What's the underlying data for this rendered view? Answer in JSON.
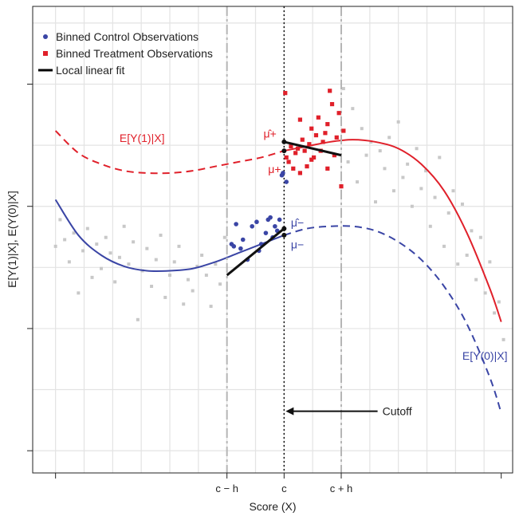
{
  "chart_data": {
    "type": "scatter",
    "title": "",
    "xlabel": "Score (X)",
    "ylabel": "E[Y(1)|X], E(Y(0)|X]",
    "xlim": [
      -1.1,
      1.0
    ],
    "ylim": [
      -1.15,
      0.95
    ],
    "grid": true,
    "x_ticks": [
      {
        "value": -1.0,
        "label": ""
      },
      {
        "value": -0.25,
        "label": "c − h"
      },
      {
        "value": 0.0,
        "label": "c"
      },
      {
        "value": 0.25,
        "label": "c + h"
      },
      {
        "value": 0.95,
        "label": ""
      }
    ],
    "y_ticks": [
      -1.05,
      -0.5,
      0.05,
      0.6
    ],
    "cutoff": 0.0,
    "bandwidth": 0.25,
    "legend": {
      "position": "top-left",
      "entries": [
        {
          "label": "Binned Control Observations",
          "color": "#3a45a5",
          "marker": "circle"
        },
        {
          "label": "Binned Treatment Observations",
          "color": "#e0202a",
          "marker": "square"
        },
        {
          "label": "Local linear fit",
          "color": "#000000",
          "marker": "line"
        }
      ]
    },
    "series": [
      {
        "name": "E[Y(1)|X]",
        "color": "#e0202a",
        "x": [
          -1.0,
          -0.9,
          -0.8,
          -0.7,
          -0.6,
          -0.5,
          -0.4,
          -0.3,
          -0.2,
          -0.1,
          0.0,
          0.1,
          0.2,
          0.3,
          0.4,
          0.5,
          0.6,
          0.7,
          0.8,
          0.9,
          0.95
        ],
        "y": [
          0.39,
          0.29,
          0.24,
          0.21,
          0.2,
          0.2,
          0.21,
          0.23,
          0.25,
          0.27,
          0.3,
          0.32,
          0.34,
          0.35,
          0.34,
          0.31,
          0.24,
          0.12,
          -0.07,
          -0.32,
          -0.47
        ],
        "dashed_range": [
          -1.0,
          0.0
        ],
        "solid_range": [
          0.0,
          0.95
        ]
      },
      {
        "name": "E[Y(0)|X]",
        "color": "#3a45a5",
        "x": [
          -1.0,
          -0.9,
          -0.8,
          -0.7,
          -0.6,
          -0.5,
          -0.4,
          -0.3,
          -0.2,
          -0.1,
          0.0,
          0.1,
          0.2,
          0.3,
          0.4,
          0.5,
          0.6,
          0.7,
          0.8,
          0.9,
          0.95
        ],
        "y": [
          0.08,
          -0.08,
          -0.17,
          -0.22,
          -0.24,
          -0.24,
          -0.23,
          -0.2,
          -0.16,
          -0.12,
          -0.08,
          -0.05,
          -0.04,
          -0.04,
          -0.06,
          -0.11,
          -0.19,
          -0.31,
          -0.48,
          -0.72,
          -0.88
        ],
        "dashed_range": [
          0.0,
          0.95
        ],
        "solid_range": [
          -1.0,
          0.0
        ]
      }
    ],
    "local_linear_fit": [
      {
        "name": "control",
        "x": [
          -0.25,
          0.0
        ],
        "y": [
          -0.26,
          -0.05
        ]
      },
      {
        "name": "treatment",
        "x": [
          0.0,
          0.25
        ],
        "y": [
          0.34,
          0.28
        ]
      }
    ],
    "control_points": {
      "color": "#3a45a5",
      "x": [
        -0.23,
        -0.22,
        -0.21,
        -0.19,
        -0.18,
        -0.16,
        -0.14,
        -0.12,
        -0.11,
        -0.1,
        -0.08,
        -0.07,
        -0.06,
        -0.05,
        -0.04,
        -0.03,
        -0.02,
        -0.01,
        -0.005,
        0.01
      ],
      "y": [
        -0.12,
        -0.13,
        -0.03,
        -0.14,
        -0.1,
        -0.19,
        -0.04,
        -0.02,
        -0.15,
        -0.12,
        -0.07,
        -0.01,
        0.0,
        -0.09,
        -0.04,
        -0.06,
        -0.01,
        0.19,
        0.2,
        0.16
      ]
    },
    "treatment_points": {
      "color": "#e0202a",
      "x": [
        0.005,
        0.01,
        0.02,
        0.03,
        0.04,
        0.05,
        0.06,
        0.07,
        0.08,
        0.09,
        0.1,
        0.11,
        0.12,
        0.13,
        0.14,
        0.15,
        0.16,
        0.17,
        0.18,
        0.19,
        0.2,
        0.21,
        0.22,
        0.23,
        0.24,
        0.25,
        0.26,
        0.07,
        0.12,
        0.19
      ],
      "y": [
        0.56,
        0.27,
        0.25,
        0.32,
        0.22,
        0.29,
        0.31,
        0.44,
        0.35,
        0.3,
        0.23,
        0.33,
        0.4,
        0.27,
        0.37,
        0.45,
        0.3,
        0.34,
        0.38,
        0.42,
        0.57,
        0.51,
        0.28,
        0.36,
        0.47,
        0.14,
        0.39,
        0.2,
        0.26,
        0.22
      ]
    },
    "background_points": {
      "color": "#c8c8c8",
      "x": [
        -1.0,
        -0.98,
        -0.96,
        -0.94,
        -0.92,
        -0.9,
        -0.88,
        -0.86,
        -0.84,
        -0.82,
        -0.8,
        -0.78,
        -0.76,
        -0.74,
        -0.72,
        -0.7,
        -0.68,
        -0.66,
        -0.64,
        -0.62,
        -0.6,
        -0.58,
        -0.56,
        -0.54,
        -0.52,
        -0.5,
        -0.48,
        -0.46,
        -0.44,
        -0.42,
        -0.4,
        -0.38,
        -0.36,
        -0.34,
        -0.32,
        -0.3,
        -0.28,
        -0.26,
        0.26,
        0.28,
        0.3,
        0.32,
        0.34,
        0.36,
        0.38,
        0.4,
        0.42,
        0.44,
        0.46,
        0.48,
        0.5,
        0.52,
        0.54,
        0.56,
        0.58,
        0.6,
        0.62,
        0.64,
        0.66,
        0.68,
        0.7,
        0.72,
        0.74,
        0.76,
        0.78,
        0.8,
        0.82,
        0.84,
        0.86,
        0.88,
        0.9,
        0.92,
        0.94,
        0.96
      ],
      "y": [
        -0.13,
        -0.01,
        -0.1,
        -0.2,
        -0.07,
        -0.34,
        -0.15,
        -0.05,
        -0.27,
        -0.12,
        -0.23,
        -0.09,
        -0.16,
        -0.29,
        -0.18,
        -0.04,
        -0.21,
        -0.11,
        -0.46,
        -0.24,
        -0.14,
        -0.31,
        -0.19,
        -0.08,
        -0.36,
        -0.26,
        -0.2,
        -0.13,
        -0.39,
        -0.28,
        -0.33,
        -0.22,
        -0.17,
        -0.26,
        -0.4,
        -0.21,
        -0.3,
        -0.09,
        0.58,
        0.25,
        0.49,
        0.16,
        0.4,
        0.28,
        0.34,
        0.07,
        0.3,
        0.22,
        0.36,
        0.12,
        0.43,
        0.18,
        0.24,
        0.05,
        0.31,
        0.13,
        0.21,
        -0.04,
        0.09,
        0.27,
        -0.13,
        0.02,
        0.12,
        -0.21,
        0.06,
        -0.17,
        -0.06,
        -0.28,
        -0.09,
        -0.34,
        -0.2,
        -0.43,
        -0.38,
        -0.55
      ]
    },
    "annotations": [
      {
        "text": "E[Y(1)|X]",
        "color": "#e0202a",
        "x": -0.72,
        "y": 0.34
      },
      {
        "text": "E[Y(0)|X]",
        "color": "#3a45a5",
        "x": 0.78,
        "y": -0.64
      },
      {
        "text": "μ̂+",
        "color": "#e0202a",
        "x": -0.09,
        "y": 0.36
      },
      {
        "text": "μ+",
        "color": "#e0202a",
        "x": -0.07,
        "y": 0.2
      },
      {
        "text": "μ̂−",
        "color": "#3a45a5",
        "x": 0.03,
        "y": -0.04
      },
      {
        "text": "μ−",
        "color": "#3a45a5",
        "x": 0.03,
        "y": -0.14
      },
      {
        "text": "Cutoff",
        "color": "#222222",
        "x": 0.43,
        "y": -0.89
      }
    ]
  }
}
